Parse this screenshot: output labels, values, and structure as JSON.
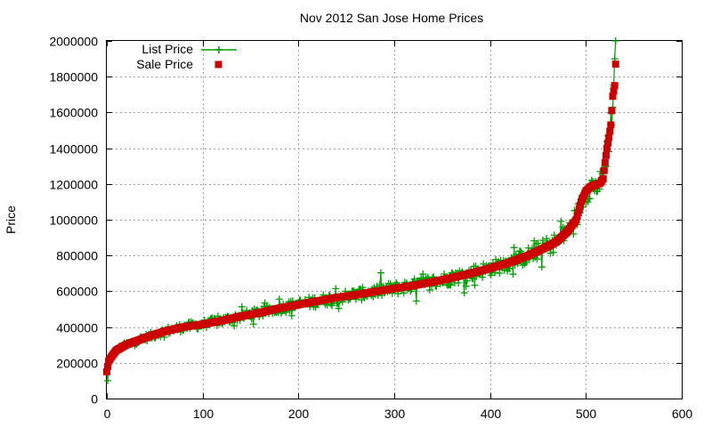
{
  "chart_data": {
    "type": "scatter",
    "title": "Nov 2012 San Jose Home Prices",
    "xlabel": "",
    "ylabel": "Price",
    "xlim": [
      0,
      600
    ],
    "ylim": [
      0,
      2000000
    ],
    "xticks": [
      0,
      100,
      200,
      300,
      400,
      500,
      600
    ],
    "yticks": [
      0,
      200000,
      400000,
      600000,
      800000,
      1000000,
      1200000,
      1400000,
      1600000,
      1800000,
      2000000
    ],
    "grid": true,
    "legend_position": "top-left",
    "sale_curve_key_points": [
      [
        0,
        150000
      ],
      [
        2,
        210000
      ],
      [
        5,
        235000
      ],
      [
        10,
        270000
      ],
      [
        20,
        300000
      ],
      [
        40,
        340000
      ],
      [
        60,
        375000
      ],
      [
        80,
        400000
      ],
      [
        100,
        415000
      ],
      [
        120,
        435000
      ],
      [
        140,
        460000
      ],
      [
        160,
        480000
      ],
      [
        180,
        505000
      ],
      [
        200,
        525000
      ],
      [
        220,
        545000
      ],
      [
        240,
        565000
      ],
      [
        260,
        580000
      ],
      [
        280,
        598000
      ],
      [
        300,
        615000
      ],
      [
        320,
        632000
      ],
      [
        340,
        652000
      ],
      [
        360,
        675000
      ],
      [
        380,
        700000
      ],
      [
        400,
        728000
      ],
      [
        420,
        760000
      ],
      [
        440,
        800000
      ],
      [
        460,
        850000
      ],
      [
        470,
        880000
      ],
      [
        480,
        930000
      ],
      [
        490,
        1000000
      ],
      [
        495,
        1100000
      ],
      [
        500,
        1160000
      ],
      [
        505,
        1185000
      ],
      [
        510,
        1195000
      ],
      [
        515,
        1205000
      ],
      [
        518,
        1230000
      ],
      [
        520,
        1320000
      ],
      [
        522,
        1400000
      ],
      [
        524,
        1460000
      ],
      [
        526,
        1530000
      ],
      [
        528,
        1690000
      ],
      [
        530,
        1750000
      ],
      [
        531,
        1870000
      ]
    ],
    "series": [
      {
        "name": "List Price",
        "color": "#00a000",
        "marker": "plus",
        "line": true
      },
      {
        "name": "Sale Price",
        "color": "#cc0000",
        "marker": "square",
        "line": false
      }
    ]
  }
}
